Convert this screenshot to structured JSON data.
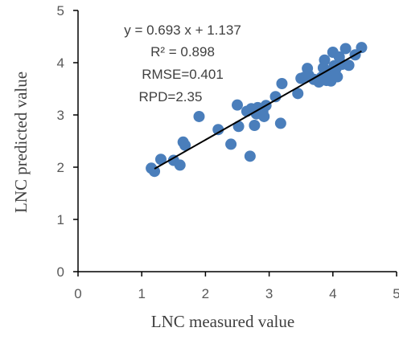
{
  "chart_data": {
    "type": "scatter",
    "xlabel": "LNC measured value",
    "ylabel": "LNC predicted value",
    "xlim": [
      0,
      5
    ],
    "ylim": [
      0,
      5
    ],
    "x_ticks": [
      "0",
      "1",
      "2",
      "3",
      "4",
      "5"
    ],
    "y_ticks": [
      "0",
      "1",
      "2",
      "3",
      "4",
      "5"
    ],
    "grid": false,
    "marker_color": "#4A7EBB",
    "fit_line_color": "#000000",
    "annotations": {
      "equation": "y = 0.693 x + 1.137",
      "r2": "R² = 0.898",
      "rmse": "RMSE=0.401",
      "rpd": "RPD=2.35"
    },
    "trendline": {
      "slope": 0.693,
      "intercept": 1.137,
      "x_range": [
        1.2,
        4.45
      ]
    },
    "points": [
      [
        1.15,
        1.98
      ],
      [
        1.2,
        1.92
      ],
      [
        1.3,
        2.15
      ],
      [
        1.5,
        2.13
      ],
      [
        1.6,
        2.04
      ],
      [
        1.65,
        2.48
      ],
      [
        1.68,
        2.42
      ],
      [
        1.9,
        2.97
      ],
      [
        2.2,
        2.72
      ],
      [
        2.4,
        2.44
      ],
      [
        2.5,
        3.19
      ],
      [
        2.52,
        2.78
      ],
      [
        2.65,
        3.07
      ],
      [
        2.7,
        2.21
      ],
      [
        2.72,
        3.12
      ],
      [
        2.77,
        2.8
      ],
      [
        2.8,
        3.02
      ],
      [
        2.82,
        3.14
      ],
      [
        2.9,
        3.06
      ],
      [
        2.92,
        2.97
      ],
      [
        2.95,
        3.18
      ],
      [
        3.1,
        3.35
      ],
      [
        3.18,
        2.84
      ],
      [
        3.2,
        3.6
      ],
      [
        3.45,
        3.41
      ],
      [
        3.5,
        3.7
      ],
      [
        3.55,
        3.72
      ],
      [
        3.6,
        3.89
      ],
      [
        3.62,
        3.76
      ],
      [
        3.7,
        3.68
      ],
      [
        3.78,
        3.63
      ],
      [
        3.82,
        3.72
      ],
      [
        3.85,
        3.9
      ],
      [
        3.87,
        4.05
      ],
      [
        3.9,
        3.66
      ],
      [
        3.92,
        3.84
      ],
      [
        3.95,
        3.8
      ],
      [
        3.97,
        3.65
      ],
      [
        4.0,
        4.2
      ],
      [
        4.02,
        3.94
      ],
      [
        4.05,
        3.89
      ],
      [
        4.07,
        3.73
      ],
      [
        4.1,
        4.11
      ],
      [
        4.15,
        3.97
      ],
      [
        4.2,
        4.27
      ],
      [
        4.25,
        3.95
      ],
      [
        4.35,
        4.15
      ],
      [
        4.45,
        4.29
      ]
    ]
  }
}
